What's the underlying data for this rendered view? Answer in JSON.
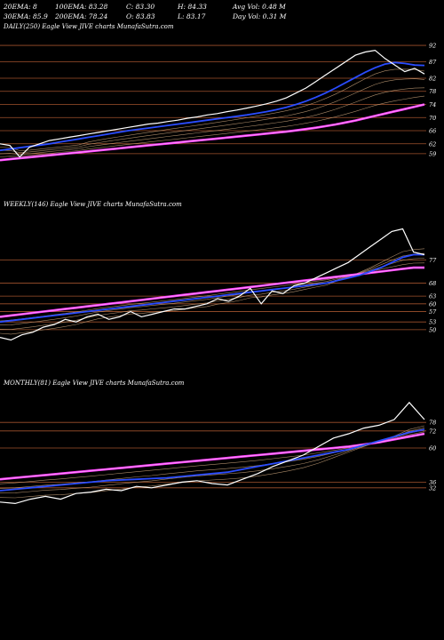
{
  "header": {
    "row1": [
      "20EMA: 8",
      "100EMA: 83.28",
      "C: 83.30",
      "H: 84.33",
      "Avg Vol: 0.48  M"
    ],
    "row2": [
      "30EMA: 85.9",
      "200EMA: 78.24",
      "O: 83.83",
      "L: 83.17",
      "Day Vol: 0.31 M"
    ]
  },
  "colors": {
    "price": "#ffffff",
    "blue": "#2a4cff",
    "magenta": "#ff40ff",
    "grid": "#a0522d",
    "ema": "#c8a27a"
  },
  "chart_data": [
    {
      "type": "line",
      "title": "DAILY(250) Eagle  View  JIVE charts MunafaSutra.com",
      "price_range": [
        53,
        95
      ],
      "ticks": [
        92,
        87,
        82,
        78,
        74,
        70,
        66,
        62,
        59
      ],
      "series": [
        {
          "role": "price",
          "values": [
            62,
            61.5,
            58,
            61,
            62,
            63,
            63.5,
            64,
            64.5,
            65,
            65.5,
            66,
            66.5,
            67,
            67.5,
            68,
            68.3,
            68.8,
            69.2,
            69.8,
            70.2,
            70.8,
            71.2,
            71.8,
            72.3,
            72.9,
            73.5,
            74.2,
            75,
            76,
            77.5,
            79,
            81,
            83,
            85,
            87,
            89,
            90,
            90.5,
            88,
            86,
            84,
            85,
            83.3
          ]
        },
        {
          "role": "blue",
          "values": [
            60,
            60.4,
            60.8,
            61.2,
            61.6,
            62,
            62.5,
            63,
            63.5,
            64,
            64.5,
            65,
            65.5,
            66,
            66.4,
            66.8,
            67.2,
            67.6,
            68,
            68.4,
            68.8,
            69.2,
            69.6,
            70,
            70.4,
            70.8,
            71.3,
            71.8,
            72.4,
            73.1,
            74,
            75,
            76.2,
            77.5,
            79,
            80.6,
            82.2,
            83.8,
            85.2,
            86.3,
            86.8,
            86.5,
            86,
            85.9
          ]
        },
        {
          "role": "magenta",
          "values": [
            57,
            57.3,
            57.6,
            57.9,
            58.2,
            58.5,
            58.8,
            59.1,
            59.4,
            59.7,
            60,
            60.3,
            60.6,
            60.9,
            61.2,
            61.5,
            61.8,
            62.1,
            62.4,
            62.7,
            63,
            63.3,
            63.6,
            63.9,
            64.2,
            64.5,
            64.8,
            65.1,
            65.4,
            65.7,
            66.1,
            66.5,
            66.9,
            67.4,
            67.9,
            68.5,
            69.1,
            69.8,
            70.5,
            71.2,
            71.9,
            72.6,
            73.3,
            74
          ]
        }
      ]
    },
    {
      "type": "line",
      "title": "WEEKLY(146) Eagle  View  JIVE charts MunafaSutra.com",
      "price_range": [
        40,
        95
      ],
      "ticks": [
        77,
        68,
        63,
        60,
        57,
        53,
        50
      ],
      "series": [
        {
          "role": "price",
          "values": [
            47,
            46,
            48,
            49,
            51,
            52,
            54,
            53,
            55,
            56,
            54,
            55,
            57,
            55,
            56,
            57,
            58,
            58,
            59,
            60,
            62,
            61,
            63,
            66,
            60,
            65,
            64,
            67,
            68,
            70,
            72,
            74,
            76,
            79,
            82,
            85,
            88,
            89,
            80,
            79
          ]
        },
        {
          "role": "blue",
          "values": [
            53,
            53.5,
            54,
            54.5,
            55,
            55.5,
            56,
            56.5,
            57,
            57.5,
            58,
            58.5,
            59,
            59.5,
            60,
            60.5,
            61,
            61.5,
            62,
            62.5,
            63,
            63.5,
            64,
            64.5,
            65,
            65.5,
            66,
            66.5,
            67,
            67.5,
            68,
            69,
            70,
            71,
            72.5,
            74,
            76,
            78,
            79,
            79
          ]
        },
        {
          "role": "magenta",
          "values": [
            55,
            55.5,
            56,
            56.5,
            57,
            57.5,
            58,
            58.5,
            59,
            59.5,
            60,
            60.5,
            61,
            61.5,
            62,
            62.5,
            63,
            63.5,
            64,
            64.5,
            65,
            65.5,
            66,
            66.5,
            67,
            67.5,
            68,
            68.5,
            69,
            69.5,
            70,
            70.5,
            71,
            71.5,
            72,
            72.5,
            73,
            73.5,
            74,
            74
          ]
        }
      ]
    },
    {
      "type": "line",
      "title": "MONTHLY(81) Eagle  View  JIVE charts MunafaSutra.com",
      "price_range": [
        0,
        100
      ],
      "ticks": [
        78,
        72,
        60,
        36,
        32
      ],
      "series": [
        {
          "role": "price",
          "values": [
            22,
            21,
            24,
            26,
            24,
            28,
            29,
            31,
            30,
            33,
            32,
            34,
            36,
            37,
            35,
            34,
            38,
            42,
            47,
            51,
            55,
            61,
            67,
            70,
            74,
            76,
            80,
            92,
            80
          ]
        },
        {
          "role": "blue",
          "values": [
            30,
            31,
            32,
            33,
            34,
            35,
            36,
            37,
            37.5,
            38,
            38.5,
            39,
            40,
            41,
            42,
            43,
            45,
            47,
            49,
            51,
            53,
            55,
            57,
            59,
            62,
            65,
            68,
            71,
            73
          ]
        },
        {
          "role": "magenta",
          "values": [
            38,
            39,
            40,
            41,
            42,
            43,
            44,
            45,
            46,
            47,
            48,
            49,
            50,
            51,
            52,
            53,
            54,
            55,
            56,
            57,
            58,
            59,
            60,
            61,
            62.5,
            64,
            66,
            68,
            70
          ]
        }
      ]
    }
  ]
}
